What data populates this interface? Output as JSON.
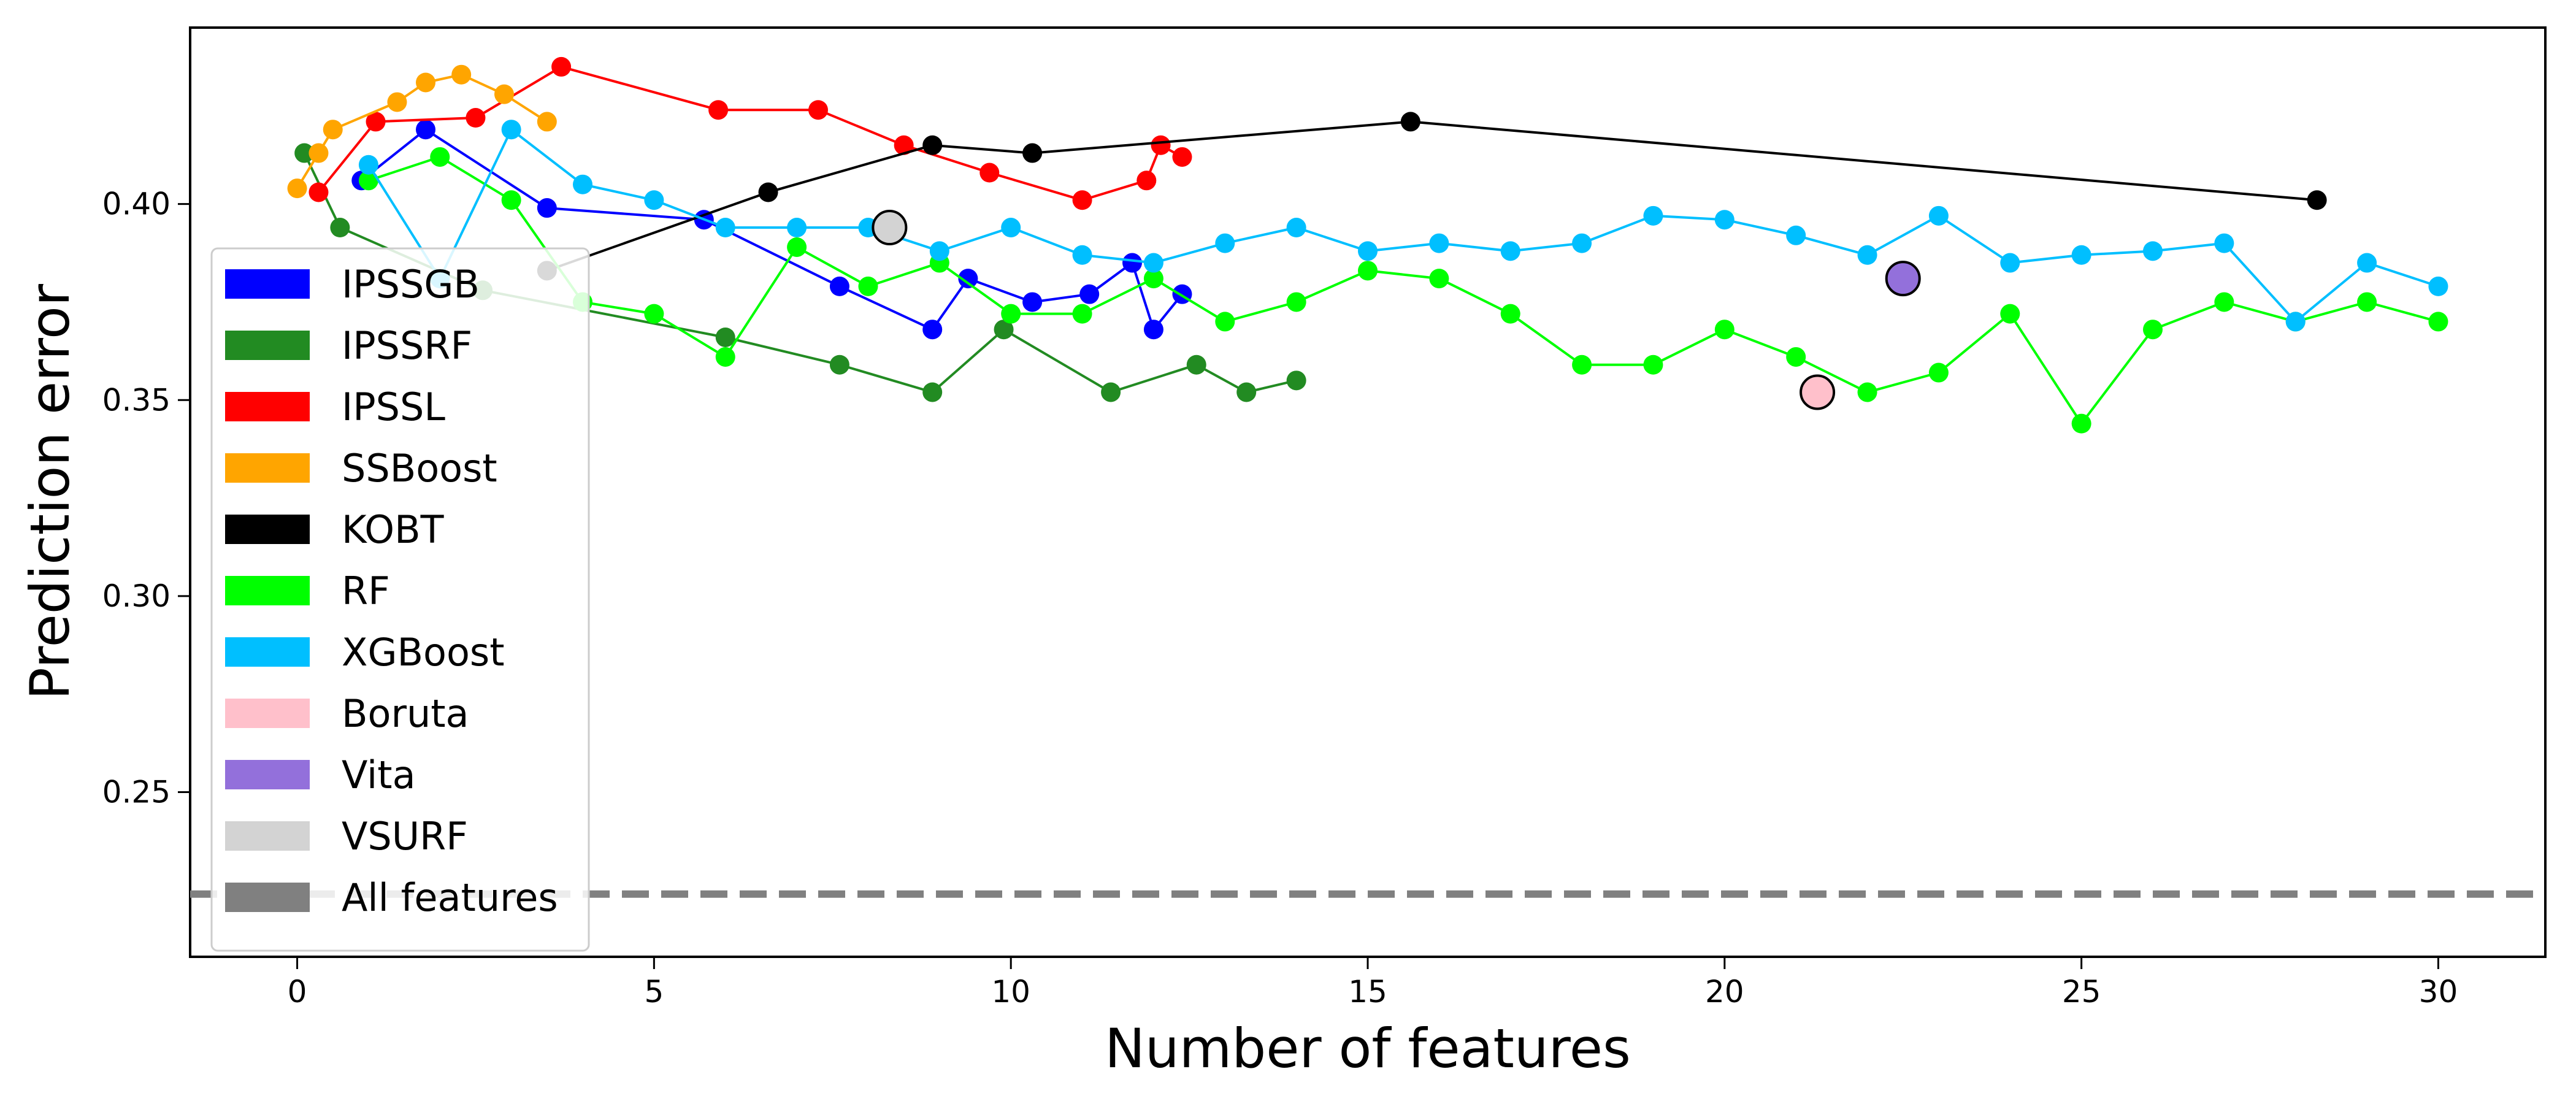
{
  "chart_data": {
    "type": "line",
    "title": "",
    "xlabel": "Number of features",
    "ylabel": "Prediction error",
    "xlim": [
      -1.5,
      31.5
    ],
    "ylim": [
      0.208,
      0.445
    ],
    "xticks": [
      0,
      5,
      10,
      15,
      20,
      25,
      30
    ],
    "yticks": [
      0.25,
      0.3,
      0.35,
      0.4
    ],
    "ytick_labels": [
      "0.25",
      "0.30",
      "0.35",
      "0.40"
    ],
    "grid": false,
    "legend_position": "left",
    "series": [
      {
        "name": "IPSSGB",
        "color": "#0000ff",
        "kind": "line",
        "x": [
          0.9,
          1.8,
          3.5,
          5.7,
          7.6,
          8.9,
          9.4,
          10.3,
          11.1,
          11.7,
          12.0,
          12.4
        ],
        "y": [
          0.406,
          0.419,
          0.399,
          0.396,
          0.379,
          0.368,
          0.381,
          0.375,
          0.377,
          0.385,
          0.368,
          0.377
        ]
      },
      {
        "name": "IPSSRF",
        "color": "#228b22",
        "kind": "line",
        "x": [
          0.1,
          0.6,
          2.6,
          6.0,
          7.6,
          8.9,
          9.9,
          11.4,
          12.6,
          13.3,
          14.0
        ],
        "y": [
          0.413,
          0.394,
          0.378,
          0.366,
          0.359,
          0.352,
          0.368,
          0.352,
          0.359,
          0.352,
          0.355
        ]
      },
      {
        "name": "IPSSL",
        "color": "#ff0000",
        "kind": "line",
        "x": [
          0.3,
          1.1,
          2.5,
          3.7,
          5.9,
          7.3,
          8.5,
          9.7,
          11.0,
          11.9,
          12.1,
          12.4
        ],
        "y": [
          0.403,
          0.421,
          0.422,
          0.435,
          0.424,
          0.424,
          0.415,
          0.408,
          0.401,
          0.406,
          0.415,
          0.412
        ]
      },
      {
        "name": "SSBoost",
        "color": "#ffa500",
        "kind": "line",
        "x": [
          0.0,
          0.3,
          0.5,
          1.4,
          1.8,
          2.3,
          2.9,
          3.5
        ],
        "y": [
          0.404,
          0.413,
          0.419,
          0.426,
          0.431,
          0.433,
          0.428,
          0.421
        ]
      },
      {
        "name": "KOBT",
        "color": "#000000",
        "kind": "line",
        "x": [
          3.5,
          6.6,
          8.9,
          10.3,
          15.6,
          28.3
        ],
        "y": [
          0.383,
          0.403,
          0.415,
          0.413,
          0.421,
          0.401
        ]
      },
      {
        "name": "RF",
        "color": "#00ff00",
        "kind": "line",
        "x": [
          1,
          2,
          3,
          4,
          5,
          6,
          7,
          8,
          9,
          10,
          11,
          12,
          13,
          14,
          15,
          16,
          17,
          18,
          19,
          20,
          21,
          22,
          23,
          24,
          25,
          26,
          27,
          28,
          29,
          30
        ],
        "y": [
          0.406,
          0.412,
          0.401,
          0.375,
          0.372,
          0.361,
          0.389,
          0.379,
          0.385,
          0.372,
          0.372,
          0.381,
          0.37,
          0.375,
          0.383,
          0.381,
          0.372,
          0.359,
          0.359,
          0.368,
          0.361,
          0.352,
          0.357,
          0.372,
          0.344,
          0.368,
          0.375,
          0.37,
          0.375,
          0.37
        ]
      },
      {
        "name": "XGBoost",
        "color": "#00bfff",
        "kind": "line",
        "x": [
          1,
          2,
          3,
          4,
          5,
          6,
          7,
          8,
          9,
          10,
          11,
          12,
          13,
          14,
          15,
          16,
          17,
          18,
          19,
          20,
          21,
          22,
          23,
          24,
          25,
          26,
          27,
          28,
          29,
          30
        ],
        "y": [
          0.41,
          0.381,
          0.419,
          0.405,
          0.401,
          0.394,
          0.394,
          0.394,
          0.388,
          0.394,
          0.387,
          0.385,
          0.39,
          0.394,
          0.388,
          0.39,
          0.388,
          0.39,
          0.397,
          0.396,
          0.392,
          0.387,
          0.397,
          0.385,
          0.387,
          0.388,
          0.39,
          0.37,
          0.385,
          0.379
        ]
      },
      {
        "name": "Boruta",
        "color": "#ffc0cb",
        "kind": "point",
        "x": [
          21.3
        ],
        "y": [
          0.352
        ]
      },
      {
        "name": "Vita",
        "color": "#9370db",
        "kind": "point",
        "x": [
          22.5
        ],
        "y": [
          0.381
        ]
      },
      {
        "name": "VSURF",
        "color": "#d3d3d3",
        "kind": "point",
        "x": [
          8.3
        ],
        "y": [
          0.394
        ]
      },
      {
        "name": "All features",
        "color": "#808080",
        "kind": "hline",
        "y": 0.224
      }
    ]
  }
}
